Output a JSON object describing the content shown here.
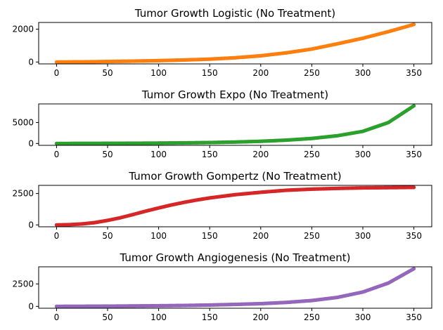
{
  "chart_data": [
    {
      "type": "scatter",
      "title": "Tumor Growth Logistic (No Treatment)",
      "xlabel": "",
      "ylabel": "",
      "xlim": [
        -17.5,
        367.5
      ],
      "ylim": [
        -115,
        2410
      ],
      "xticks": [
        0,
        50,
        100,
        150,
        200,
        250,
        300,
        350
      ],
      "yticks": [
        0,
        2000
      ],
      "grid": false,
      "color": "#ff7f0e",
      "x": [
        0,
        25,
        50,
        75,
        100,
        125,
        150,
        175,
        200,
        225,
        250,
        275,
        300,
        325,
        350
      ],
      "series": [
        {
          "values": [
            0,
            10,
            30,
            55,
            85,
            125,
            175,
            260,
            380,
            560,
            790,
            1110,
            1450,
            1850,
            2290
          ]
        }
      ]
    },
    {
      "type": "scatter",
      "title": "Tumor Growth Expo (No Treatment)",
      "xlabel": "",
      "ylabel": "",
      "xlim": [
        -17.5,
        367.5
      ],
      "ylim": [
        -450,
        9450
      ],
      "xticks": [
        0,
        50,
        100,
        150,
        200,
        250,
        300,
        350
      ],
      "yticks": [
        0,
        5000
      ],
      "grid": false,
      "color": "#2ca02c",
      "x": [
        0,
        25,
        50,
        75,
        100,
        125,
        150,
        175,
        200,
        225,
        250,
        275,
        300,
        325,
        350
      ],
      "series": [
        {
          "values": [
            0,
            10,
            30,
            55,
            90,
            140,
            220,
            340,
            520,
            800,
            1200,
            1850,
            2900,
            5000,
            9000
          ]
        }
      ]
    },
    {
      "type": "scatter",
      "title": "Tumor Growth Gompertz (No Treatment)",
      "xlabel": "",
      "ylabel": "",
      "xlim": [
        -17.5,
        367.5
      ],
      "ylim": [
        -150,
        3150
      ],
      "xticks": [
        0,
        50,
        100,
        150,
        200,
        250,
        300,
        350
      ],
      "yticks": [
        0,
        2500
      ],
      "grid": false,
      "color": "#d62728",
      "x": [
        0,
        12,
        25,
        37,
        50,
        62,
        75,
        87,
        100,
        112,
        125,
        137,
        150,
        175,
        200,
        225,
        250,
        275,
        300,
        325,
        350
      ],
      "series": [
        {
          "values": [
            0,
            20,
            80,
            180,
            360,
            560,
            830,
            1090,
            1350,
            1580,
            1800,
            1980,
            2150,
            2410,
            2600,
            2760,
            2850,
            2910,
            2950,
            2970,
            2990
          ]
        }
      ]
    },
    {
      "type": "scatter",
      "title": "Tumor Growth Angiogenesis (No Treatment)",
      "xlabel": "",
      "ylabel": "",
      "xlim": [
        -17.5,
        367.5
      ],
      "ylim": [
        -210,
        4410
      ],
      "xticks": [
        0,
        50,
        100,
        150,
        200,
        250,
        300,
        350
      ],
      "yticks": [
        0,
        2500
      ],
      "grid": false,
      "color": "#9467bd",
      "x": [
        0,
        25,
        50,
        75,
        100,
        125,
        150,
        175,
        200,
        225,
        250,
        275,
        300,
        325,
        350
      ],
      "series": [
        {
          "values": [
            0,
            10,
            25,
            45,
            70,
            100,
            150,
            220,
            300,
            440,
            650,
            1000,
            1600,
            2600,
            4200
          ]
        }
      ]
    }
  ]
}
